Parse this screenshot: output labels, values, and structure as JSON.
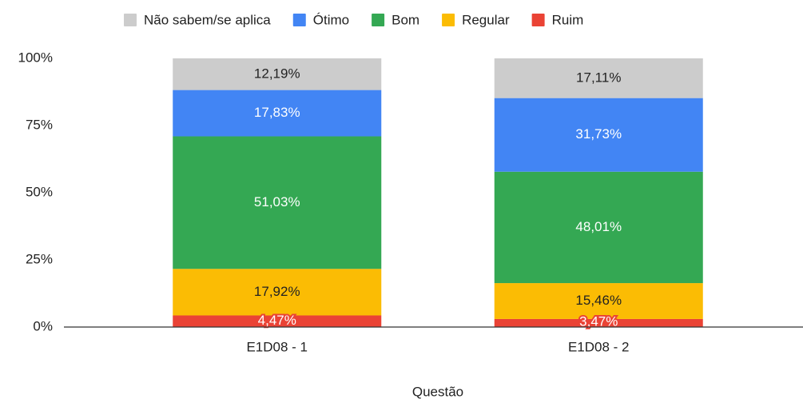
{
  "chart_data": {
    "type": "bar",
    "stacking": "percent",
    "x_label": "Questão",
    "categories": [
      "E1D08 - 1",
      "E1D08 - 2"
    ],
    "series": [
      {
        "name": "Ruim",
        "color": "#ea4335",
        "label_color": "#ffffff",
        "values": [
          4.47,
          3.47
        ],
        "value_labels": [
          "4,47%",
          "3,47%"
        ]
      },
      {
        "name": "Regular",
        "color": "#fbbc04",
        "label_color": "#222222",
        "values": [
          17.92,
          15.46
        ],
        "value_labels": [
          "17,92%",
          "15,46%"
        ]
      },
      {
        "name": "Bom",
        "color": "#34a853",
        "label_color": "#ffffff",
        "values": [
          51.03,
          48.01
        ],
        "value_labels": [
          "51,03%",
          "48,01%"
        ]
      },
      {
        "name": "Ótimo",
        "color": "#4285f4",
        "label_color": "#ffffff",
        "values": [
          17.83,
          31.73
        ],
        "value_labels": [
          "17,83%",
          "31,73%"
        ]
      },
      {
        "name": "Não sabem/se aplica",
        "color": "#cccccc",
        "label_color": "#222222",
        "values": [
          12.19,
          17.11
        ],
        "value_labels": [
          "12,19%",
          "17,11%"
        ]
      }
    ],
    "legend": "top",
    "ylim": [
      0,
      100
    ],
    "yticks": [
      {
        "value": 0,
        "label": "0%"
      },
      {
        "value": 25,
        "label": "25%"
      },
      {
        "value": 50,
        "label": "50%"
      },
      {
        "value": 75,
        "label": "75%"
      },
      {
        "value": 100,
        "label": "100%"
      }
    ],
    "grid": false
  }
}
